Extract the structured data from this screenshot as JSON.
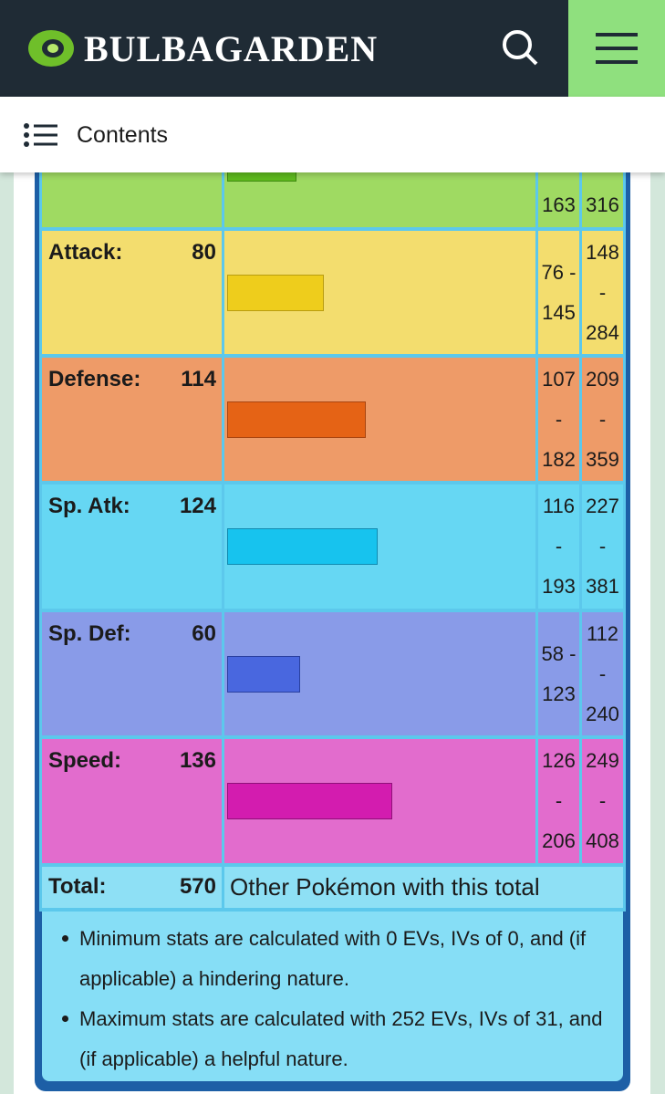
{
  "header": {
    "site": "BULBAGARDEN"
  },
  "toc": {
    "label": "Contents"
  },
  "stats": {
    "rows": [
      {
        "min": "163",
        "max": "316"
      },
      {
        "label": "Attack:",
        "value": 80,
        "min": "76 - 145",
        "max": "148 - 284"
      },
      {
        "label": "Defense:",
        "value": 114,
        "min": "107 - 182",
        "max": "209 - 359"
      },
      {
        "label": "Sp. Atk:",
        "value": 124,
        "min": "116 - 193",
        "max": "227 - 381"
      },
      {
        "label": "Sp. Def:",
        "value": 60,
        "min": "58 - 123",
        "max": "112 - 240"
      },
      {
        "label": "Speed:",
        "value": 136,
        "min": "126 - 206",
        "max": "249 - 408"
      }
    ],
    "total": {
      "label": "Total:",
      "value": 570,
      "link": "Other Pokémon with this total"
    },
    "notes": [
      "Minimum stats are calculated with 0 EVs, IVs of 0, and (if applicable) a hindering nature.",
      "Maximum stats are calculated with 252 EVs, IVs of 31, and (if applicable) a helpful nature."
    ]
  }
}
